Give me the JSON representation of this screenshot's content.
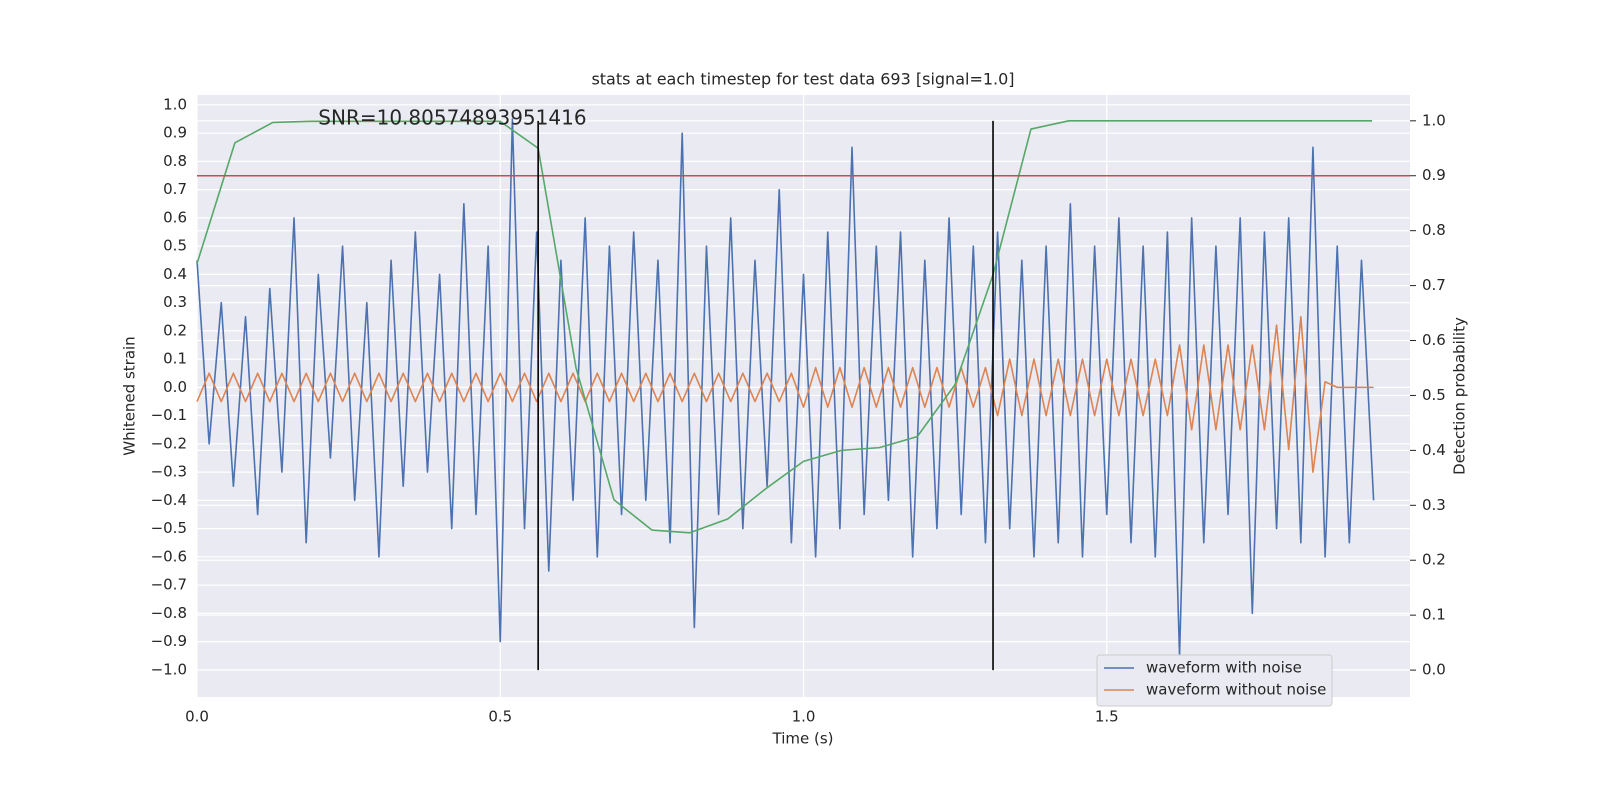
{
  "chart_data": {
    "type": "line",
    "title": "stats at each timestep for test data 693 [signal=1.0]",
    "xlabel": "Time (s)",
    "ylabel": "Whitened strain",
    "y2label": "Detection probability",
    "annotation": {
      "text": "SNR=10.80574893951416",
      "x": 0.2,
      "y": 0.95
    },
    "xlim": [
      0,
      2.0
    ],
    "ylim": [
      -1.096,
      1.035
    ],
    "y2lim": [
      -0.049,
      1.047
    ],
    "xticks": [
      {
        "value": 0,
        "label": "0.0"
      },
      {
        "value": 0.5,
        "label": "0.5"
      },
      {
        "value": 1,
        "label": "1.0"
      },
      {
        "value": 1.5,
        "label": "1.5"
      }
    ],
    "yticks": [
      {
        "value": -1,
        "label": "−1.0"
      },
      {
        "value": -0.9,
        "label": "−0.9"
      },
      {
        "value": -0.8,
        "label": "−0.8"
      },
      {
        "value": -0.7,
        "label": "−0.7"
      },
      {
        "value": -0.6,
        "label": "−0.6"
      },
      {
        "value": -0.5,
        "label": "−0.5"
      },
      {
        "value": -0.4,
        "label": "−0.4"
      },
      {
        "value": -0.3,
        "label": "−0.3"
      },
      {
        "value": -0.2,
        "label": "−0.2"
      },
      {
        "value": -0.1,
        "label": "−0.1"
      },
      {
        "value": 0,
        "label": "0.0"
      },
      {
        "value": 0.1,
        "label": "0.1"
      },
      {
        "value": 0.2,
        "label": "0.2"
      },
      {
        "value": 0.3,
        "label": "0.3"
      },
      {
        "value": 0.4,
        "label": "0.4"
      },
      {
        "value": 0.5,
        "label": "0.5"
      },
      {
        "value": 0.6,
        "label": "0.6"
      },
      {
        "value": 0.7,
        "label": "0.7"
      },
      {
        "value": 0.8,
        "label": "0.8"
      },
      {
        "value": 0.9,
        "label": "0.9"
      },
      {
        "value": 1,
        "label": "1.0"
      }
    ],
    "y2ticks": [
      {
        "value": 0,
        "label": "0.0"
      },
      {
        "value": 0.1,
        "label": "0.1"
      },
      {
        "value": 0.2,
        "label": "0.2"
      },
      {
        "value": 0.3,
        "label": "0.3"
      },
      {
        "value": 0.4,
        "label": "0.4"
      },
      {
        "value": 0.5,
        "label": "0.5"
      },
      {
        "value": 0.6,
        "label": "0.6"
      },
      {
        "value": 0.7,
        "label": "0.7"
      },
      {
        "value": 0.8,
        "label": "0.8"
      },
      {
        "value": 0.9,
        "label": "0.9"
      },
      {
        "value": 1,
        "label": "1.0"
      }
    ],
    "grid": true,
    "legend": "lower right",
    "x": [
      0,
      0.02,
      0.04,
      0.06,
      0.08,
      0.1,
      0.12,
      0.14,
      0.16,
      0.18,
      0.2,
      0.22,
      0.24,
      0.26,
      0.28,
      0.3,
      0.32,
      0.34,
      0.36,
      0.38,
      0.4,
      0.42,
      0.44,
      0.46,
      0.48,
      0.5,
      0.52,
      0.54,
      0.56,
      0.58,
      0.6,
      0.62,
      0.64,
      0.66,
      0.68,
      0.7,
      0.72,
      0.74,
      0.76,
      0.78,
      0.8,
      0.82,
      0.84,
      0.86,
      0.88,
      0.9,
      0.92,
      0.94,
      0.96,
      0.98,
      1.0,
      1.02,
      1.04,
      1.06,
      1.08,
      1.1,
      1.12,
      1.14,
      1.16,
      1.18,
      1.2,
      1.22,
      1.24,
      1.26,
      1.28,
      1.3,
      1.32,
      1.34,
      1.36,
      1.38,
      1.4,
      1.42,
      1.44,
      1.46,
      1.48,
      1.5,
      1.52,
      1.54,
      1.56,
      1.58,
      1.6,
      1.62,
      1.64,
      1.66,
      1.68,
      1.7,
      1.72,
      1.74,
      1.76,
      1.78,
      1.8,
      1.82,
      1.84,
      1.86,
      1.88,
      1.9,
      1.92,
      1.94
    ],
    "series": [
      {
        "name": "waveform with noise",
        "color": "#4c72b0",
        "values": [
          0.45,
          -0.2,
          0.3,
          -0.35,
          0.25,
          -0.45,
          0.35,
          -0.3,
          0.6,
          -0.55,
          0.4,
          -0.25,
          0.5,
          -0.4,
          0.3,
          -0.6,
          0.45,
          -0.35,
          0.55,
          -0.3,
          0.4,
          -0.5,
          0.65,
          -0.45,
          0.5,
          -0.9,
          0.95,
          -0.5,
          0.55,
          -0.65,
          0.45,
          -0.4,
          0.6,
          -0.6,
          0.5,
          -0.45,
          0.55,
          -0.4,
          0.45,
          -0.55,
          0.9,
          -0.85,
          0.5,
          -0.45,
          0.6,
          -0.5,
          0.45,
          -0.35,
          0.7,
          -0.55,
          0.4,
          -0.6,
          0.55,
          -0.5,
          0.85,
          -0.45,
          0.5,
          -0.4,
          0.55,
          -0.6,
          0.45,
          -0.5,
          0.6,
          -0.45,
          0.5,
          -0.55,
          0.55,
          -0.5,
          0.45,
          -0.6,
          0.5,
          -0.55,
          0.65,
          -0.6,
          0.5,
          -0.45,
          0.6,
          -0.55,
          0.5,
          -0.6,
          0.55,
          -0.95,
          0.6,
          -0.55,
          0.5,
          -0.45,
          0.6,
          -0.8,
          0.55,
          -0.5,
          0.6,
          -0.55,
          0.85,
          -0.6,
          0.5,
          -0.55,
          0.45,
          -0.4
        ]
      },
      {
        "name": "waveform without noise",
        "color": "#dd8452",
        "values": [
          -0.05,
          0.05,
          -0.05,
          0.05,
          -0.05,
          0.05,
          -0.05,
          0.05,
          -0.05,
          0.05,
          -0.05,
          0.05,
          -0.05,
          0.05,
          -0.05,
          0.05,
          -0.05,
          0.05,
          -0.05,
          0.05,
          -0.05,
          0.05,
          -0.05,
          0.05,
          -0.05,
          0.05,
          -0.05,
          0.05,
          -0.05,
          0.05,
          -0.05,
          0.05,
          -0.05,
          0.05,
          -0.05,
          0.05,
          -0.05,
          0.05,
          -0.05,
          0.05,
          -0.05,
          0.05,
          -0.05,
          0.05,
          -0.05,
          0.05,
          -0.05,
          0.05,
          -0.05,
          0.05,
          -0.07,
          0.07,
          -0.07,
          0.07,
          -0.07,
          0.07,
          -0.07,
          0.07,
          -0.07,
          0.07,
          -0.07,
          0.07,
          -0.07,
          0.07,
          -0.07,
          0.07,
          -0.1,
          0.1,
          -0.1,
          0.1,
          -0.1,
          0.1,
          -0.1,
          0.1,
          -0.1,
          0.1,
          -0.1,
          0.1,
          -0.1,
          0.1,
          -0.1,
          0.15,
          -0.15,
          0.15,
          -0.15,
          0.15,
          -0.15,
          0.15,
          -0.15,
          0.22,
          -0.22,
          0.25,
          -0.3,
          0.02,
          0,
          0,
          0,
          0
        ]
      },
      {
        "color": "#55a868",
        "axis": "y2",
        "x": [
          0,
          0.0625,
          0.125,
          0.1875,
          0.25,
          0.3125,
          0.375,
          0.4375,
          0.5,
          0.5625,
          0.625,
          0.6875,
          0.75,
          0.8125,
          0.875,
          0.9375,
          1.0,
          1.0625,
          1.125,
          1.1875,
          1.25,
          1.3125,
          1.375,
          1.4375,
          1.5,
          1.5625,
          1.625,
          1.6875,
          1.75,
          1.8125,
          1.875,
          1.9375
        ],
        "values": [
          0.74,
          0.96,
          0.997,
          0.999,
          0.999,
          0.999,
          0.999,
          0.999,
          0.999,
          0.95,
          0.55,
          0.31,
          0.255,
          0.25,
          0.275,
          0.33,
          0.38,
          0.4,
          0.405,
          0.425,
          0.52,
          0.72,
          0.985,
          1.0,
          1.0,
          1.0,
          1.0,
          1.0,
          1.0,
          1.0,
          1.0,
          1.0
        ]
      }
    ],
    "hline": {
      "value": 0.9,
      "axis": "y2",
      "color": "#c44e52"
    },
    "vlines": {
      "x": [
        0.5625,
        1.3125
      ],
      "ymin": 0,
      "ymax": 1,
      "axis": "y2",
      "color": "#000000"
    }
  }
}
